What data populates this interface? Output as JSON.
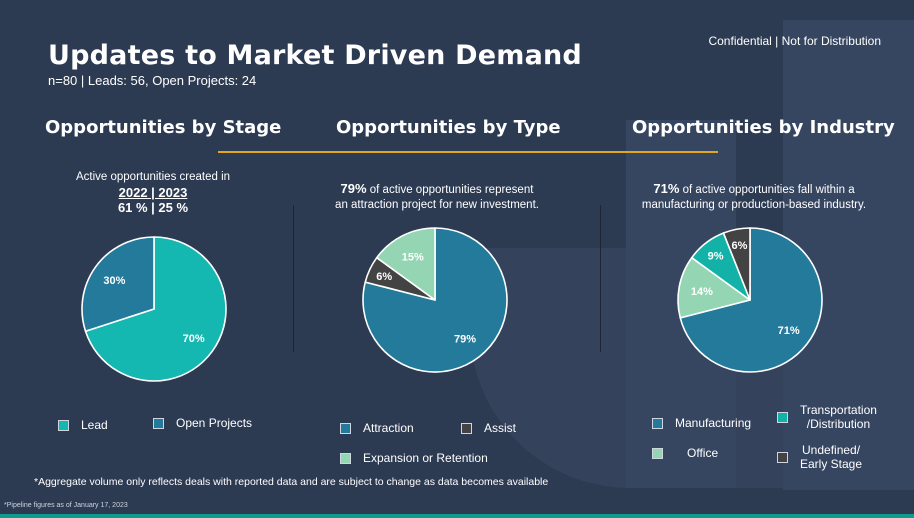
{
  "header": {
    "title": "Updates to Market Driven Demand",
    "subtitle": "n=80 | Leads: 56, Open Projects: 24",
    "confidential": "Confidential | Not for Distribution"
  },
  "sections": {
    "stage": {
      "title": "Opportunities by Stage",
      "note_line1": "Active opportunities created in",
      "note_years": "2022 | 2023",
      "note_pcts": "61 % | 25 %"
    },
    "type": {
      "title": "Opportunities by Type",
      "note_pct": "79%",
      "note_rest": " of active opportunities represent",
      "note_line2": "an attraction project for new investment."
    },
    "industry": {
      "title": "Opportunities by Industry",
      "note_pct": "71%",
      "note_rest": " of active opportunities fall within a",
      "note_line2": "manufacturing or production-based industry."
    }
  },
  "footnote": "*Aggregate volume only reflects deals with reported data and are subject to change as data becomes available",
  "pipeline_note": "*Pipeline figures as of January 17, 2023",
  "colors": {
    "background": "#2c3a52",
    "accent_line": "#e3a51a",
    "teal_light": "#14b8b0",
    "blue": "#237a9a",
    "mint": "#94d6b4",
    "dark_gray": "#434343",
    "teal": "#12b2a8"
  },
  "chart_data": [
    {
      "type": "pie",
      "title": "Opportunities by Stage",
      "slices": [
        {
          "label": "Lead",
          "value": 70,
          "display": "70%",
          "color": "#14b8b0"
        },
        {
          "label": "Open Projects",
          "value": 30,
          "display": "30%",
          "color": "#237a9a"
        }
      ]
    },
    {
      "type": "pie",
      "title": "Opportunities by Type",
      "slices": [
        {
          "label": "Attraction",
          "value": 79,
          "display": "79%",
          "color": "#237a9a"
        },
        {
          "label": "Assist",
          "value": 6,
          "display": "6%",
          "color": "#434343"
        },
        {
          "label": "Expansion or Retention",
          "value": 15,
          "display": "15%",
          "color": "#94d6b4"
        }
      ]
    },
    {
      "type": "pie",
      "title": "Opportunities by Industry",
      "slices": [
        {
          "label": "Manufacturing",
          "value": 71,
          "display": "71%",
          "color": "#237a9a"
        },
        {
          "label": "Office",
          "value": 14,
          "display": "14%",
          "color": "#94d6b4"
        },
        {
          "label": "Transportation /Distribution",
          "value": 9,
          "display": "9%",
          "color": "#12b2a8"
        },
        {
          "label": "Undefined/ Early Stage",
          "value": 6,
          "display": "6%",
          "color": "#434343"
        }
      ]
    }
  ],
  "legends": {
    "stage": [
      "Lead",
      "Open Projects"
    ],
    "type": [
      "Attraction",
      "Assist",
      "Expansion or Retention"
    ],
    "industry": {
      "manufacturing": "Manufacturing",
      "office": "Office",
      "transport_1": "Transportation",
      "transport_2": "/Distribution",
      "undefined_1": "Undefined/",
      "undefined_2": "Early Stage"
    }
  }
}
